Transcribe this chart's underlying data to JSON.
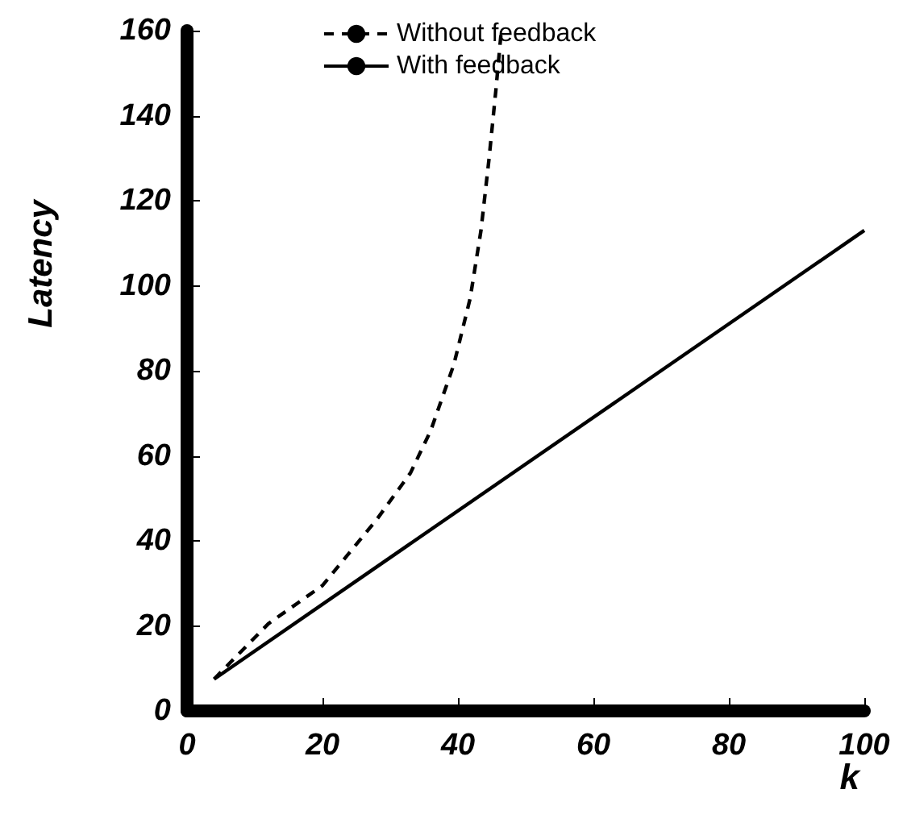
{
  "chart_data": {
    "type": "line",
    "xlabel": "k",
    "ylabel": "Latency",
    "x": [
      4,
      12,
      20,
      28,
      33,
      36,
      39.4,
      41.8,
      43.4,
      44.6,
      45.6,
      46.4
    ],
    "series": [
      {
        "name": "Without feedback",
        "color": "#000000",
        "line_style": "dashed",
        "values": [
          7.5,
          20.5,
          29.5,
          45,
          56,
          66,
          81.5,
          97,
          113,
          130,
          146,
          160
        ]
      },
      {
        "name": "With feedback",
        "color": "#000000",
        "line_style": "solid",
        "x": [
          4,
          100
        ],
        "values": [
          7.5,
          113
        ]
      }
    ],
    "xlim": [
      0,
      100
    ],
    "xticks": [
      0,
      20,
      40,
      60,
      80,
      100
    ],
    "ylim": [
      0,
      160
    ],
    "yticks": [
      0,
      20,
      40,
      60,
      80,
      100,
      120,
      140,
      160
    ],
    "grid": false,
    "legend": "top",
    "marker": "none"
  }
}
